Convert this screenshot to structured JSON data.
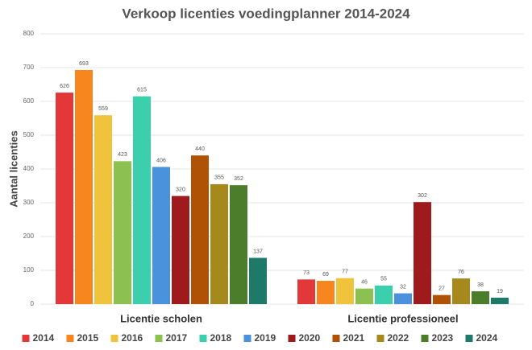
{
  "chart_data": {
    "type": "bar",
    "title": "Verkoop licenties voedingplanner 2014-2024",
    "y_label": "Aantal licenties",
    "categories": [
      "Licentie scholen",
      "Licentie professioneel"
    ],
    "series": [
      {
        "name": "2014",
        "color": "#e2383a",
        "values": [
          626,
          73
        ]
      },
      {
        "name": "2015",
        "color": "#f7861f",
        "values": [
          693,
          69
        ]
      },
      {
        "name": "2016",
        "color": "#efc33c",
        "values": [
          559,
          77
        ]
      },
      {
        "name": "2017",
        "color": "#8cc152",
        "values": [
          423,
          46
        ]
      },
      {
        "name": "2018",
        "color": "#3bcfae",
        "values": [
          615,
          55
        ]
      },
      {
        "name": "2019",
        "color": "#4a92dc",
        "values": [
          406,
          32
        ]
      },
      {
        "name": "2020",
        "color": "#9e1a1d",
        "values": [
          320,
          302
        ]
      },
      {
        "name": "2021",
        "color": "#b05205",
        "values": [
          440,
          27
        ]
      },
      {
        "name": "2022",
        "color": "#a5891d",
        "values": [
          355,
          76
        ]
      },
      {
        "name": "2023",
        "color": "#4b7d2b",
        "values": [
          352,
          38
        ]
      },
      {
        "name": "2024",
        "color": "#1d7a69",
        "values": [
          137,
          19
        ]
      }
    ],
    "ylim": [
      0,
      800
    ],
    "yticks": [
      0,
      100,
      200,
      300,
      400,
      500,
      600,
      700,
      800
    ],
    "grid": true
  }
}
